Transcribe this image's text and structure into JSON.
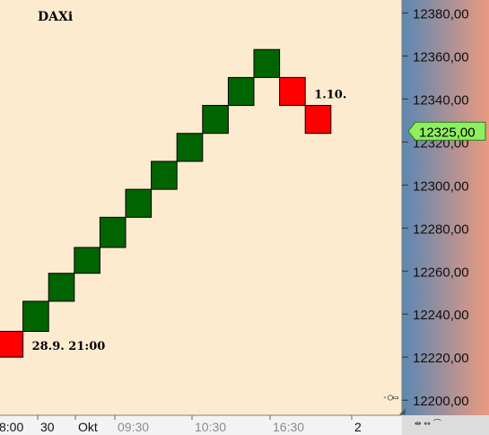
{
  "chart_data": {
    "type": "renko",
    "title": "DAXi",
    "y_range": [
      12193,
      12386
    ],
    "y_ticks": [
      "12200,00",
      "12220,00",
      "12240,00",
      "12260,00",
      "12280,00",
      "12300,00",
      "12320,00",
      "12340,00",
      "12360,00",
      "12380,00"
    ],
    "x_tick_labels": [
      "8:00",
      "30",
      "Okt",
      "09:30",
      "10:30",
      "16:30",
      "2"
    ],
    "current_price": "12325,00",
    "bricks": [
      {
        "low": 12220,
        "high": 12232,
        "direction": "down"
      },
      {
        "low": 12232,
        "high": 12246,
        "direction": "up"
      },
      {
        "low": 12246,
        "high": 12259,
        "direction": "up"
      },
      {
        "low": 12259,
        "high": 12271,
        "direction": "up"
      },
      {
        "low": 12271,
        "high": 12285,
        "direction": "up"
      },
      {
        "low": 12285,
        "high": 12298,
        "direction": "up"
      },
      {
        "low": 12298,
        "high": 12311,
        "direction": "up"
      },
      {
        "low": 12311,
        "high": 12324,
        "direction": "up"
      },
      {
        "low": 12324,
        "high": 12337,
        "direction": "up"
      },
      {
        "low": 12337,
        "high": 12350,
        "direction": "up"
      },
      {
        "low": 12350,
        "high": 12363,
        "direction": "up"
      },
      {
        "low": 12337,
        "high": 12350,
        "direction": "down"
      },
      {
        "low": 12324,
        "high": 12337,
        "direction": "down"
      }
    ],
    "annotations": [
      {
        "text": "28.9. 21:00",
        "brick": 0
      },
      {
        "text": "1.10.",
        "brick": 11
      }
    ],
    "colors": {
      "up": "#006400",
      "down": "#ff0000",
      "background": "#fdebd0",
      "axis_gradient_left": "#5b87b3",
      "axis_gradient_right": "#eb9a80",
      "price_label": "#90ee62"
    }
  }
}
